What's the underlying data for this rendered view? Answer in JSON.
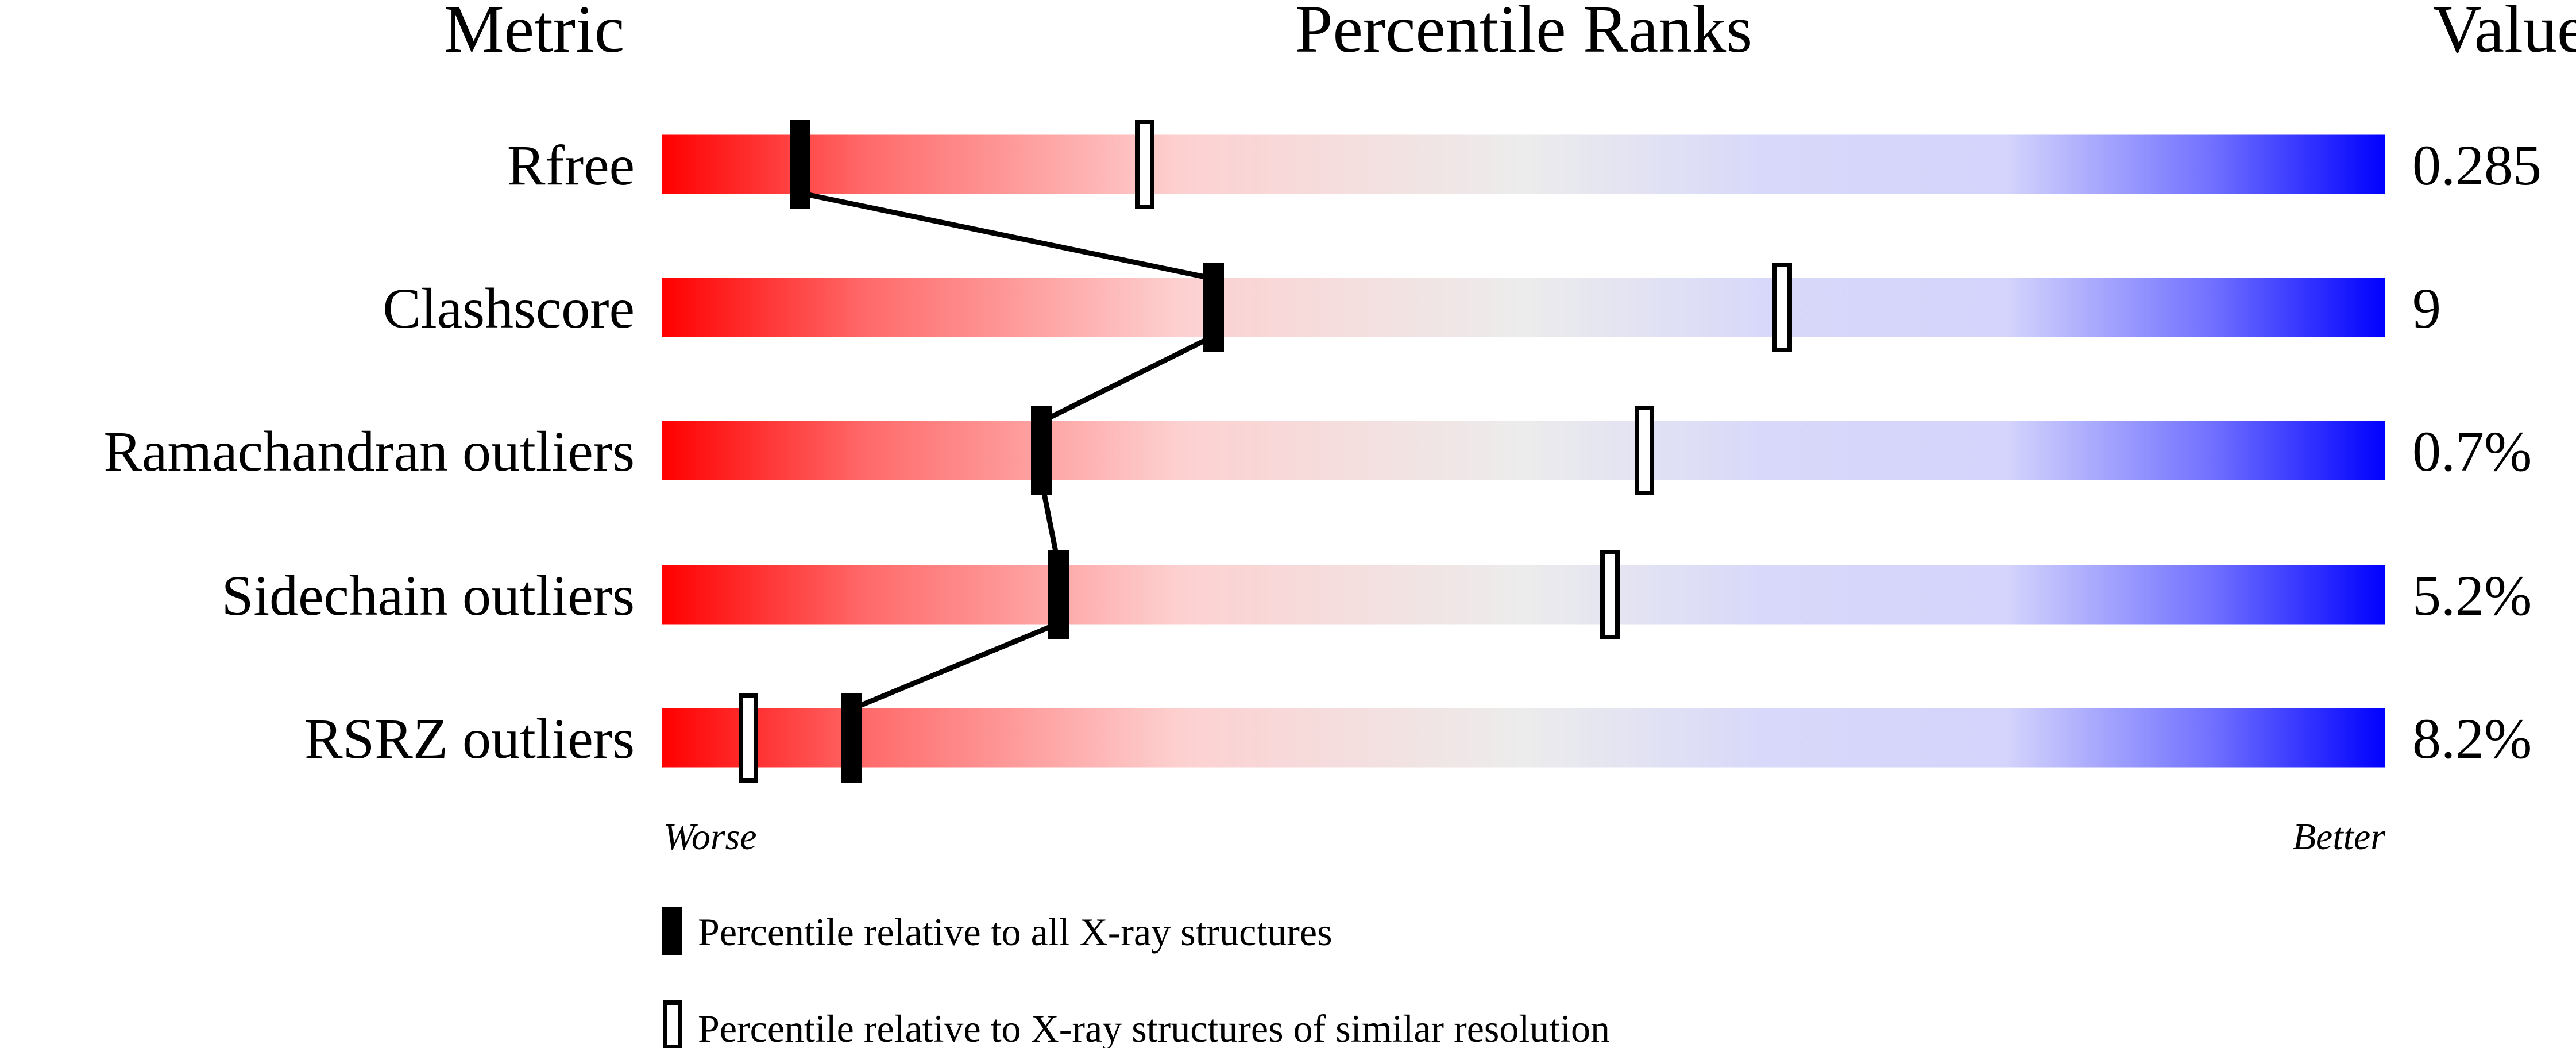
{
  "chart_data": {
    "type": "percentile-bar",
    "headers": {
      "metric": "Metric",
      "ranks": "Percentile Ranks",
      "value": "Value"
    },
    "axis": {
      "min": 0,
      "max": 100,
      "left_label": "Worse",
      "right_label": "Better"
    },
    "metrics": [
      {
        "name": "Rfree",
        "value": "0.285",
        "percentile_all": 8,
        "percentile_similar": 28
      },
      {
        "name": "Clashscore",
        "value": "9",
        "percentile_all": 32,
        "percentile_similar": 65
      },
      {
        "name": "Ramachandran outliers",
        "value": "0.7%",
        "percentile_all": 22,
        "percentile_similar": 57
      },
      {
        "name": "Sidechain outliers",
        "value": "5.2%",
        "percentile_all": 23,
        "percentile_similar": 55
      },
      {
        "name": "RSRZ outliers",
        "value": "8.2%",
        "percentile_all": 11,
        "percentile_similar": 5
      }
    ],
    "legend": [
      {
        "marker": "filled",
        "label": "Percentile relative to all X-ray structures"
      },
      {
        "marker": "open",
        "label": "Percentile relative to X-ray structures of similar resolution"
      }
    ],
    "colors": {
      "worse": "#ff0000",
      "middle": "#eeeeee",
      "better": "#0000ff",
      "marker": "#000000"
    }
  }
}
